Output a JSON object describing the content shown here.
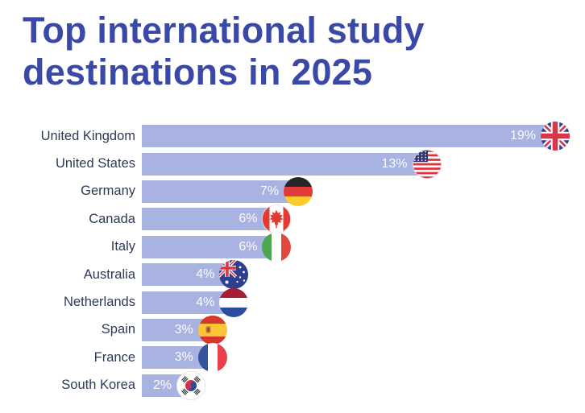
{
  "title": "Top international study destinations in 2025",
  "title_lines": [
    "Top international study",
    "destinations in 2025"
  ],
  "colors": {
    "title": "#3A49A8",
    "bar": "#A9B3E1",
    "country_label": "#2D3A56",
    "value_label": "#FFFFFF",
    "background": "#FFFFFF"
  },
  "chart_data": {
    "type": "bar",
    "orientation": "horizontal",
    "title": "Top international study destinations in 2025",
    "categories": [
      "United Kingdom",
      "United States",
      "Germany",
      "Canada",
      "Italy",
      "Australia",
      "Netherlands",
      "Spain",
      "France",
      "South Korea"
    ],
    "values": [
      19,
      13,
      7,
      6,
      6,
      4,
      4,
      3,
      3,
      2
    ],
    "value_labels": [
      "19%",
      "13%",
      "7%",
      "6%",
      "6%",
      "4%",
      "4%",
      "3%",
      "3%",
      "2%"
    ],
    "unit": "%",
    "xlim": [
      0,
      19
    ],
    "grid": false,
    "legend": false,
    "flag_icons": [
      "uk",
      "us",
      "de",
      "ca",
      "it",
      "au",
      "nl",
      "es",
      "fr",
      "kr"
    ]
  }
}
